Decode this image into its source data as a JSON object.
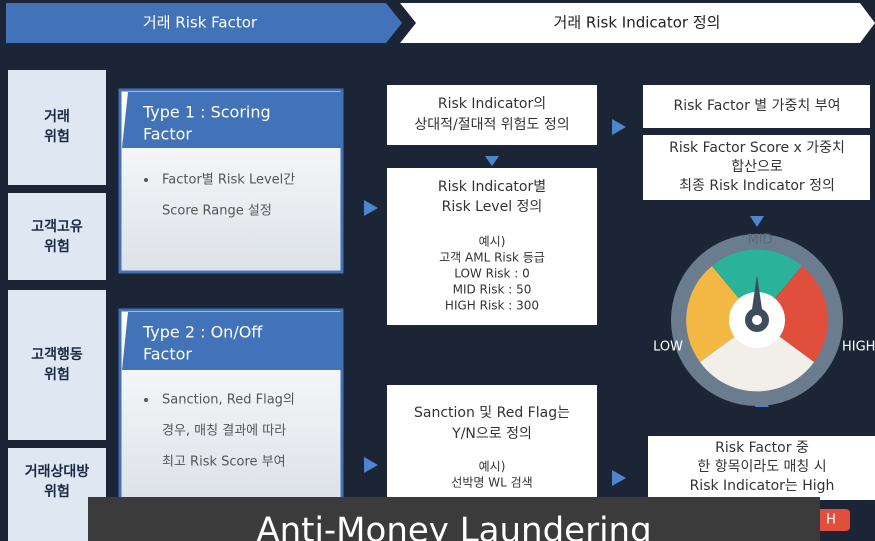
{
  "header": {
    "left": "거래 Risk Factor",
    "right": "거래 Risk Indicator 정의"
  },
  "categories": [
    [
      "거래",
      "위험"
    ],
    [
      "고객고유",
      "위험"
    ],
    [
      "고객행동",
      "위험"
    ],
    [
      "거래상대방",
      "위험"
    ]
  ],
  "types": [
    {
      "title": [
        "Type 1 : Scoring",
        "Factor"
      ],
      "bullet": [
        "Factor별 Risk Level간",
        "Score Range 설정"
      ]
    },
    {
      "title": [
        "Type 2 : On/Off",
        "Factor"
      ],
      "bullet": [
        "Sanction, Red Flag의",
        "경우, 매칭 결과에 따라",
        "최고 Risk Score 부여"
      ]
    }
  ],
  "middle": {
    "box1": [
      "Risk Indicator의",
      "상대적/절대적 위험도 정의"
    ],
    "box2": {
      "title": [
        "Risk Indicator별",
        "Risk Level 정의"
      ],
      "example": [
        "예시)",
        "고객 AML Risk 등급",
        "LOW Risk : 0",
        "MID Risk : 50",
        "HIGH Risk : 300"
      ]
    },
    "box3": {
      "title": [
        "Sanction 및 Red Flag는",
        "Y/N으로 정의"
      ],
      "example": [
        "예시)",
        "선박명 WL 검색"
      ]
    }
  },
  "right": {
    "box1": "Risk Factor 별 가중치 부여",
    "box2": [
      "Risk Factor Score x 가중치",
      "합산으로",
      "최종 Risk Indicator 정의"
    ],
    "gauge": {
      "mid": "MID",
      "low": "LOW",
      "high": "HIGH"
    },
    "box3": [
      "Risk Factor 중",
      "한 항목이라도 매칭 시",
      "Risk Indicator는 High"
    ],
    "badge": "H"
  },
  "overlay": "Anti-Money Laundering"
}
